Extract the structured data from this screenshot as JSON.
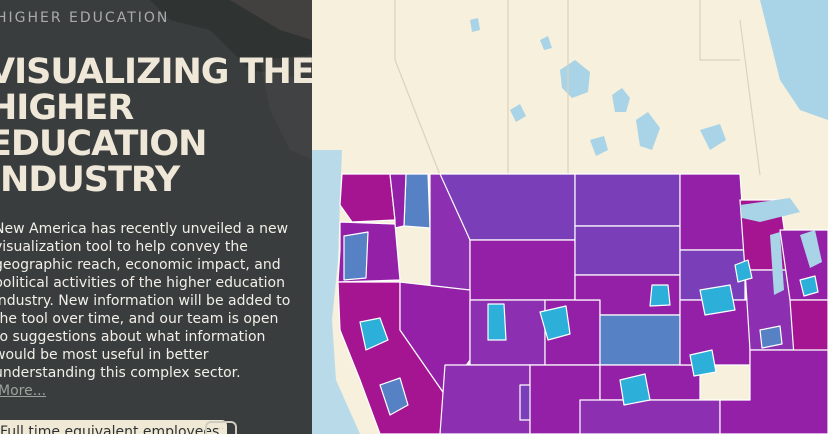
{
  "panel": {
    "eyebrow": "HIGHER EDUCATION",
    "title_lines": [
      "VISUALIZING THE",
      "HIGHER",
      "EDUCATION",
      "INDUSTRY"
    ],
    "description": "New America has recently unveiled a new visualization tool to help convey the geographic reach, economic impact, and political activities of the higher education industry. New information will be added to the tool over time, and our team is open to suggestions about what information would be most useful in better understanding this complex sector.",
    "more_link": "More...",
    "measure_label": "Full time equivalent employees",
    "measure_toggle": "··"
  },
  "map": {
    "colors": {
      "land": "#f6f0dc",
      "water": "#a9d3e6",
      "ocean": "#b9dbe9",
      "border": "#ddd3bb",
      "panel": "#3a3d3e",
      "districts": [
        "#7a3fb8",
        "#9420a8",
        "#a51592",
        "#5681c4",
        "#2cb0da",
        "#8c2fb0"
      ]
    }
  }
}
